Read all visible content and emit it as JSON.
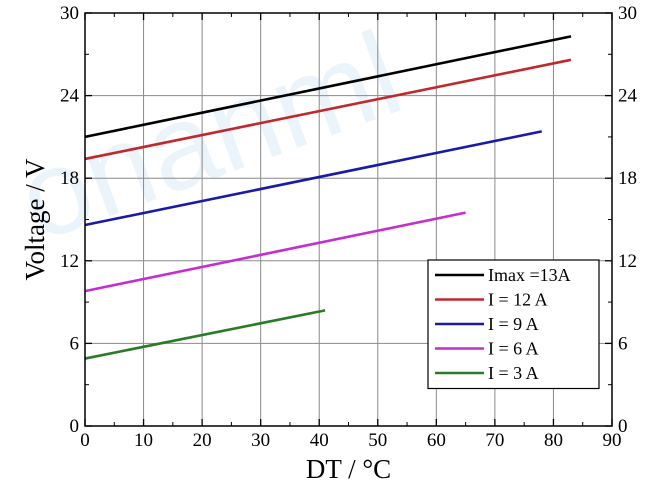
{
  "chart_data": {
    "type": "line",
    "title": "",
    "xlabel": "DT / °C",
    "ylabel": "Voltage / V",
    "xlim": [
      0,
      90
    ],
    "ylim": [
      0,
      30
    ],
    "x_ticks": [
      0,
      10,
      20,
      30,
      40,
      50,
      60,
      70,
      80,
      90
    ],
    "y_ticks": [
      0,
      6,
      12,
      18,
      24,
      30
    ],
    "x_tick_labels": [
      "0",
      "10",
      "20",
      "30",
      "40",
      "50",
      "60",
      "70",
      "80",
      "90"
    ],
    "y_tick_labels": [
      "0",
      "6",
      "12",
      "18",
      "24",
      "30"
    ],
    "grid": true,
    "right_axis_labels": true,
    "legend_position": "bottom-right",
    "series": [
      {
        "name": "Imax =13A",
        "color": "#000000",
        "x": [
          0,
          83
        ],
        "y": [
          21.0,
          28.3
        ]
      },
      {
        "name": "I = 12 A",
        "color": "#c0282d",
        "x": [
          0,
          83
        ],
        "y": [
          19.4,
          26.6
        ]
      },
      {
        "name": "I = 9 A",
        "color": "#1a1aa8",
        "x": [
          0,
          78
        ],
        "y": [
          14.6,
          21.4
        ]
      },
      {
        "name": "I = 6 A",
        "color": "#c42ed0",
        "x": [
          0,
          65
        ],
        "y": [
          9.8,
          15.5
        ]
      },
      {
        "name": "I = 3 A",
        "color": "#2a7a2a",
        "x": [
          0,
          41
        ],
        "y": [
          4.9,
          8.4
        ]
      }
    ]
  }
}
